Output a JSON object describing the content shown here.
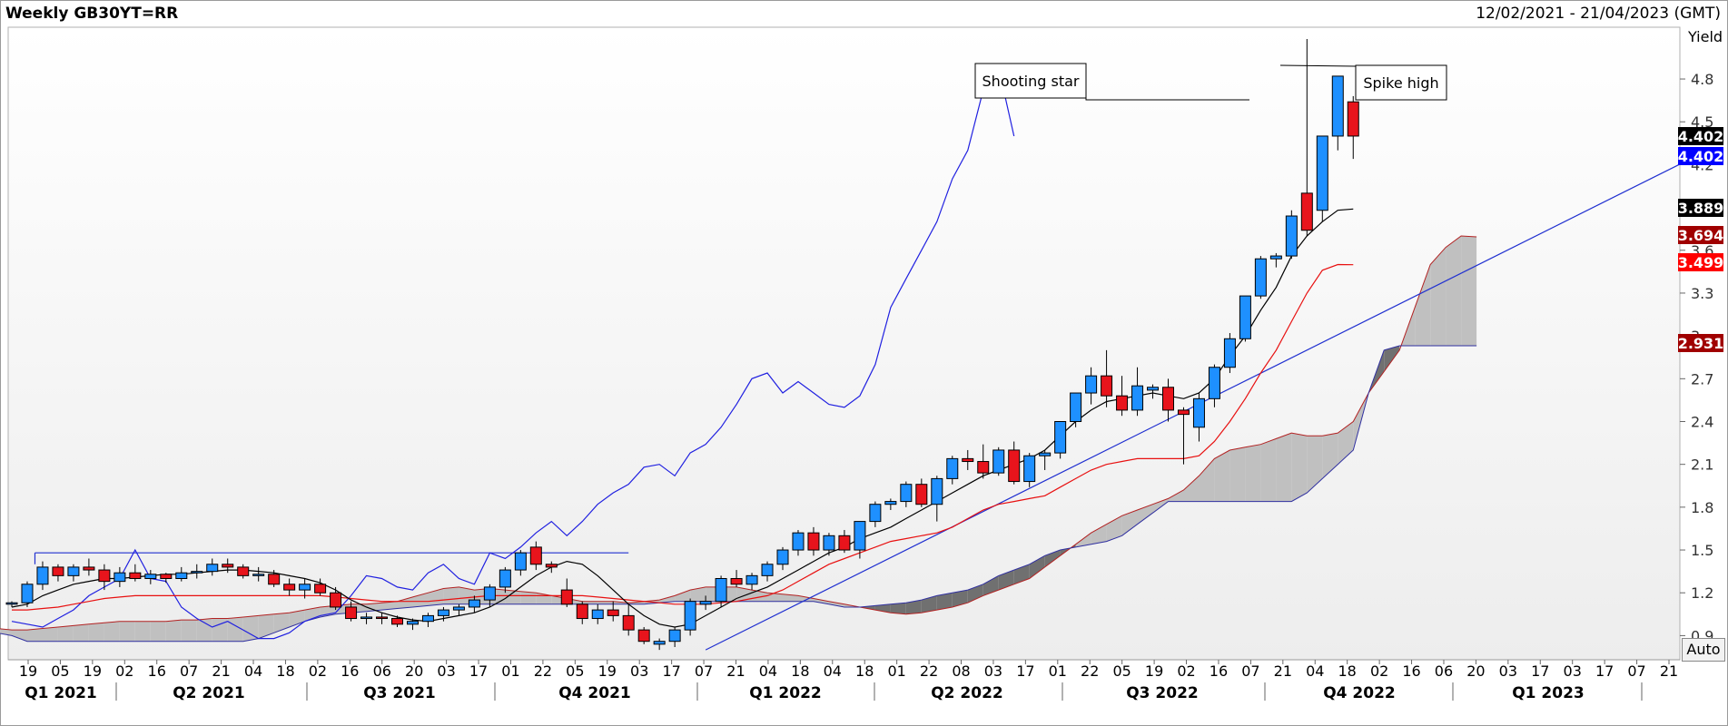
{
  "header": {
    "title": "Weekly GB30YT=RR",
    "date_range": "12/02/2021 - 21/04/2023 (GMT)"
  },
  "controls": {
    "auto_label": "Auto"
  },
  "chart_data": {
    "type": "candlestick",
    "instrument": "GB30YT=RR",
    "interval": "Weekly",
    "ylabel": "Yield",
    "ylim": [
      0.75,
      5.15
    ],
    "yticks": [
      0.9,
      1.2,
      1.5,
      1.8,
      2.1,
      2.4,
      2.7,
      3,
      3.3,
      3.6,
      4.2,
      4.5,
      4.8
    ],
    "week_labels": [
      "19",
      "05",
      "19",
      "02",
      "16",
      "07",
      "21",
      "04",
      "18",
      "02",
      "16",
      "06",
      "20",
      "03",
      "17",
      "01",
      "22",
      "05",
      "19",
      "03",
      "17",
      "07",
      "21",
      "04",
      "18",
      "04",
      "18",
      "01",
      "22",
      "08",
      "03",
      "17",
      "01",
      "22",
      "05",
      "19",
      "02",
      "16",
      "07",
      "21",
      "04",
      "18",
      "02",
      "16",
      "06",
      "20",
      "03",
      "17",
      "03",
      "17",
      "07",
      "21"
    ],
    "quarter_labels": [
      "Q1 2021",
      "Q2 2021",
      "Q3 2021",
      "Q4 2021",
      "Q1 2022",
      "Q2 2022",
      "Q3 2022",
      "Q4 2022",
      "Q1 2023"
    ],
    "candles": [
      [
        1.12,
        1.14,
        1.1,
        1.13
      ],
      [
        1.13,
        1.28,
        1.1,
        1.26
      ],
      [
        1.26,
        1.42,
        1.22,
        1.38
      ],
      [
        1.38,
        1.4,
        1.28,
        1.32
      ],
      [
        1.32,
        1.4,
        1.28,
        1.38
      ],
      [
        1.38,
        1.44,
        1.32,
        1.36
      ],
      [
        1.36,
        1.4,
        1.22,
        1.28
      ],
      [
        1.28,
        1.38,
        1.24,
        1.34
      ],
      [
        1.34,
        1.4,
        1.28,
        1.3
      ],
      [
        1.3,
        1.36,
        1.26,
        1.33
      ],
      [
        1.33,
        1.34,
        1.27,
        1.3
      ],
      [
        1.3,
        1.38,
        1.28,
        1.34
      ],
      [
        1.34,
        1.4,
        1.3,
        1.35
      ],
      [
        1.35,
        1.44,
        1.32,
        1.4
      ],
      [
        1.4,
        1.44,
        1.34,
        1.38
      ],
      [
        1.38,
        1.4,
        1.3,
        1.32
      ],
      [
        1.32,
        1.38,
        1.28,
        1.33
      ],
      [
        1.33,
        1.36,
        1.24,
        1.26
      ],
      [
        1.26,
        1.3,
        1.18,
        1.22
      ],
      [
        1.22,
        1.3,
        1.16,
        1.26
      ],
      [
        1.26,
        1.3,
        1.18,
        1.2
      ],
      [
        1.2,
        1.24,
        1.08,
        1.1
      ],
      [
        1.1,
        1.14,
        1.0,
        1.02
      ],
      [
        1.02,
        1.06,
        0.98,
        1.03
      ],
      [
        1.03,
        1.06,
        0.98,
        1.02
      ],
      [
        1.02,
        1.04,
        0.96,
        0.98
      ],
      [
        0.98,
        1.02,
        0.94,
        1.0
      ],
      [
        1.0,
        1.06,
        0.96,
        1.04
      ],
      [
        1.04,
        1.1,
        1.0,
        1.08
      ],
      [
        1.08,
        1.12,
        1.04,
        1.1
      ],
      [
        1.1,
        1.18,
        1.06,
        1.15
      ],
      [
        1.15,
        1.26,
        1.1,
        1.24
      ],
      [
        1.24,
        1.38,
        1.2,
        1.36
      ],
      [
        1.36,
        1.5,
        1.32,
        1.48
      ],
      [
        1.52,
        1.56,
        1.36,
        1.4
      ],
      [
        1.4,
        1.42,
        1.34,
        1.38
      ],
      [
        1.22,
        1.3,
        1.1,
        1.12
      ],
      [
        1.12,
        1.14,
        0.98,
        1.02
      ],
      [
        1.02,
        1.12,
        0.98,
        1.08
      ],
      [
        1.08,
        1.14,
        1.0,
        1.04
      ],
      [
        1.04,
        1.12,
        0.9,
        0.94
      ],
      [
        0.94,
        0.96,
        0.84,
        0.86
      ],
      [
        0.84,
        0.88,
        0.8,
        0.86
      ],
      [
        0.86,
        0.96,
        0.82,
        0.94
      ],
      [
        0.94,
        1.16,
        0.9,
        1.14
      ],
      [
        1.12,
        1.18,
        1.08,
        1.14
      ],
      [
        1.14,
        1.32,
        1.1,
        1.3
      ],
      [
        1.3,
        1.36,
        1.24,
        1.26
      ],
      [
        1.26,
        1.34,
        1.22,
        1.32
      ],
      [
        1.32,
        1.42,
        1.28,
        1.4
      ],
      [
        1.4,
        1.52,
        1.36,
        1.5
      ],
      [
        1.5,
        1.64,
        1.46,
        1.62
      ],
      [
        1.62,
        1.66,
        1.46,
        1.5
      ],
      [
        1.5,
        1.62,
        1.46,
        1.6
      ],
      [
        1.6,
        1.64,
        1.48,
        1.5
      ],
      [
        1.5,
        1.7,
        1.44,
        1.7
      ],
      [
        1.7,
        1.84,
        1.66,
        1.82
      ],
      [
        1.82,
        1.86,
        1.78,
        1.84
      ],
      [
        1.84,
        1.98,
        1.8,
        1.96
      ],
      [
        1.96,
        2.0,
        1.8,
        1.82
      ],
      [
        1.82,
        2.02,
        1.7,
        2.0
      ],
      [
        2.0,
        2.16,
        1.96,
        2.14
      ],
      [
        2.14,
        2.2,
        2.06,
        2.12
      ],
      [
        2.12,
        2.24,
        2.0,
        2.04
      ],
      [
        2.04,
        2.22,
        2.02,
        2.2
      ],
      [
        2.2,
        2.26,
        1.96,
        1.98
      ],
      [
        1.98,
        2.18,
        1.94,
        2.16
      ],
      [
        2.16,
        2.2,
        2.06,
        2.18
      ],
      [
        2.18,
        2.4,
        2.14,
        2.4
      ],
      [
        2.4,
        2.6,
        2.36,
        2.6
      ],
      [
        2.6,
        2.78,
        2.52,
        2.72
      ],
      [
        2.72,
        2.9,
        2.5,
        2.58
      ],
      [
        2.58,
        2.72,
        2.44,
        2.48
      ],
      [
        2.48,
        2.78,
        2.44,
        2.65
      ],
      [
        2.62,
        2.66,
        2.56,
        2.64
      ],
      [
        2.64,
        2.7,
        2.4,
        2.48
      ],
      [
        2.48,
        2.5,
        2.1,
        2.45
      ],
      [
        2.36,
        2.6,
        2.26,
        2.56
      ],
      [
        2.56,
        2.8,
        2.5,
        2.78
      ],
      [
        2.78,
        3.02,
        2.74,
        2.98
      ],
      [
        2.98,
        3.28,
        2.96,
        3.28
      ],
      [
        3.28,
        3.56,
        3.26,
        3.54
      ],
      [
        3.54,
        3.58,
        3.48,
        3.56
      ],
      [
        3.56,
        3.88,
        3.54,
        3.84
      ],
      [
        4.0,
        5.08,
        3.7,
        3.74
      ],
      [
        3.88,
        4.4,
        3.8,
        4.4
      ],
      [
        4.4,
        4.82,
        4.3,
        4.82
      ],
      [
        4.64,
        4.68,
        4.24,
        4.4
      ]
    ],
    "tenkan": [
      1.1,
      1.12,
      1.18,
      1.22,
      1.26,
      1.28,
      1.3,
      1.3,
      1.31,
      1.32,
      1.33,
      1.33,
      1.34,
      1.35,
      1.36,
      1.36,
      1.35,
      1.34,
      1.32,
      1.3,
      1.27,
      1.22,
      1.15,
      1.1,
      1.06,
      1.03,
      1.01,
      1.0,
      1.02,
      1.04,
      1.06,
      1.1,
      1.16,
      1.24,
      1.32,
      1.38,
      1.42,
      1.4,
      1.32,
      1.22,
      1.12,
      1.04,
      0.98,
      0.96,
      0.98,
      1.04,
      1.1,
      1.16,
      1.2,
      1.24,
      1.3,
      1.36,
      1.42,
      1.48,
      1.52,
      1.58,
      1.62,
      1.66,
      1.72,
      1.78,
      1.84,
      1.9,
      1.96,
      2.02,
      2.06,
      2.1,
      2.14,
      2.2,
      2.3,
      2.4,
      2.48,
      2.54,
      2.56,
      2.58,
      2.6,
      2.58,
      2.56,
      2.6,
      2.7,
      2.86,
      3.0,
      3.18,
      3.34,
      3.56,
      3.7,
      3.8,
      3.88,
      3.889
    ],
    "kijun": [
      1.08,
      1.08,
      1.09,
      1.1,
      1.12,
      1.14,
      1.16,
      1.17,
      1.18,
      1.18,
      1.18,
      1.18,
      1.18,
      1.18,
      1.18,
      1.18,
      1.18,
      1.18,
      1.18,
      1.18,
      1.18,
      1.17,
      1.16,
      1.15,
      1.14,
      1.14,
      1.14,
      1.14,
      1.15,
      1.16,
      1.17,
      1.18,
      1.18,
      1.18,
      1.18,
      1.18,
      1.18,
      1.18,
      1.17,
      1.16,
      1.15,
      1.14,
      1.13,
      1.12,
      1.12,
      1.12,
      1.13,
      1.14,
      1.16,
      1.18,
      1.22,
      1.28,
      1.34,
      1.4,
      1.44,
      1.48,
      1.52,
      1.56,
      1.58,
      1.6,
      1.62,
      1.66,
      1.72,
      1.78,
      1.82,
      1.84,
      1.86,
      1.88,
      1.94,
      2.0,
      2.06,
      2.1,
      2.12,
      2.14,
      2.14,
      2.14,
      2.14,
      2.16,
      2.26,
      2.4,
      2.56,
      2.74,
      2.9,
      3.1,
      3.3,
      3.46,
      3.5,
      3.499
    ],
    "chikou": [
      1.0,
      0.98,
      0.96,
      1.02,
      1.08,
      1.18,
      1.24,
      1.3,
      1.5,
      1.3,
      1.28,
      1.1,
      1.02,
      0.96,
      1.0,
      0.94,
      0.88,
      0.88,
      0.92,
      1.0,
      1.04,
      1.06,
      1.18,
      1.32,
      1.3,
      1.24,
      1.22,
      1.34,
      1.4,
      1.3,
      1.26,
      1.48,
      1.44,
      1.52,
      1.62,
      1.7,
      1.6,
      1.7,
      1.82,
      1.9,
      1.96,
      2.08,
      2.1,
      2.02,
      2.18,
      2.24,
      2.36,
      2.52,
      2.7,
      2.74,
      2.6,
      2.68,
      2.6,
      2.52,
      2.5,
      2.58,
      2.8,
      3.2,
      3.4,
      3.6,
      3.8,
      4.1,
      4.3,
      4.72,
      4.88,
      4.4
    ],
    "span_a": [
      0.95,
      0.94,
      0.94,
      0.95,
      0.96,
      0.97,
      0.98,
      0.99,
      1.0,
      1.0,
      1.0,
      1.0,
      1.01,
      1.01,
      1.02,
      1.02,
      1.03,
      1.04,
      1.05,
      1.06,
      1.08,
      1.1,
      1.11,
      1.12,
      1.12,
      1.13,
      1.14,
      1.17,
      1.2,
      1.23,
      1.24,
      1.22,
      1.23,
      1.22,
      1.21,
      1.2,
      1.18,
      1.16,
      1.14,
      1.14,
      1.14,
      1.13,
      1.14,
      1.15,
      1.18,
      1.22,
      1.24,
      1.24,
      1.24,
      1.22,
      1.2,
      1.19,
      1.18,
      1.16,
      1.14,
      1.12,
      1.1,
      1.08,
      1.06,
      1.05,
      1.06,
      1.08,
      1.1,
      1.13,
      1.18,
      1.22,
      1.26,
      1.3,
      1.38,
      1.46,
      1.54,
      1.62,
      1.68,
      1.74,
      1.78,
      1.82,
      1.86,
      1.92,
      2.02,
      2.14,
      2.2,
      2.22,
      2.24,
      2.28,
      2.32,
      2.3,
      2.3,
      2.32,
      2.4,
      2.6,
      2.75,
      2.9,
      3.2,
      3.5,
      3.62,
      3.7,
      3.694
    ],
    "span_b": [
      0.92,
      0.9,
      0.86,
      0.86,
      0.86,
      0.86,
      0.86,
      0.86,
      0.86,
      0.86,
      0.86,
      0.86,
      0.86,
      0.86,
      0.86,
      0.86,
      0.86,
      0.88,
      0.92,
      0.96,
      1.0,
      1.03,
      1.05,
      1.06,
      1.07,
      1.08,
      1.09,
      1.1,
      1.11,
      1.12,
      1.12,
      1.12,
      1.12,
      1.12,
      1.12,
      1.12,
      1.12,
      1.12,
      1.12,
      1.12,
      1.12,
      1.12,
      1.12,
      1.13,
      1.14,
      1.14,
      1.14,
      1.14,
      1.14,
      1.14,
      1.14,
      1.14,
      1.14,
      1.14,
      1.12,
      1.1,
      1.1,
      1.11,
      1.12,
      1.13,
      1.15,
      1.18,
      1.2,
      1.22,
      1.26,
      1.32,
      1.36,
      1.4,
      1.46,
      1.5,
      1.52,
      1.54,
      1.56,
      1.6,
      1.68,
      1.76,
      1.84,
      1.84,
      1.84,
      1.84,
      1.84,
      1.84,
      1.84,
      1.84,
      1.84,
      1.9,
      2.0,
      2.1,
      2.2,
      2.6,
      2.9,
      2.931,
      2.931,
      2.931,
      2.931,
      2.931,
      2.931
    ],
    "horizontal_line": {
      "value": 1.48
    },
    "trendline": {
      "from": [
        45,
        0.8
      ],
      "to": [
        1.0,
        4.2
      ]
    },
    "annotations": [
      "Shooting star",
      "Spike high"
    ],
    "price_labels": [
      {
        "value": "4.402",
        "color": "#000000"
      },
      {
        "value": "4.402",
        "color": "#0000ff"
      },
      {
        "value": "3.889",
        "color": "#000000"
      },
      {
        "value": "3.694",
        "color": "#a00000"
      },
      {
        "value": "3.499",
        "color": "#ff0000"
      },
      {
        "value": "2.931",
        "color": "#a00000"
      }
    ],
    "colors": {
      "up": "#1e90ff",
      "down": "#e8141c",
      "tenkan": "#000000",
      "kijun": "#e81010",
      "chikou": "#2020e0",
      "cloud_bull": "#c0c0c0",
      "cloud_bear": "#707070",
      "trend": "#2030d0"
    }
  }
}
